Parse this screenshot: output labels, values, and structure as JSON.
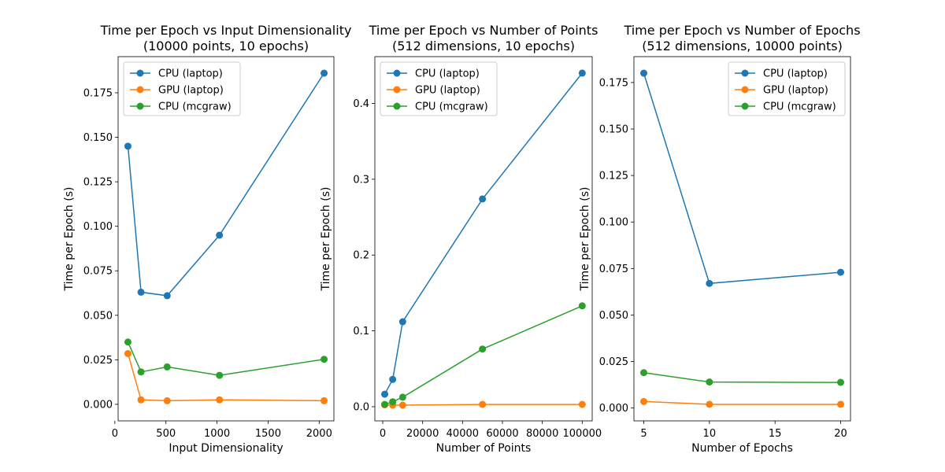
{
  "chart_data": [
    {
      "type": "line",
      "title": "Time per Epoch vs Input Dimensionality",
      "subtitle": "(10000 points, 10 epochs)",
      "xlabel": "Input Dimensionality",
      "ylabel": "Time per Epoch (s)",
      "xlim": [
        32,
        2144
      ],
      "ylim": [
        -0.0093,
        0.1953
      ],
      "xticks": [
        0,
        500,
        1000,
        1500,
        2000
      ],
      "xtick_labels": [
        "0",
        "500",
        "1000",
        "1500",
        "2000"
      ],
      "yticks": [
        0.0,
        0.025,
        0.05,
        0.075,
        0.1,
        0.125,
        0.15,
        0.175
      ],
      "ytick_labels": [
        "0.000",
        "0.025",
        "0.050",
        "0.075",
        "0.100",
        "0.125",
        "0.150",
        "0.175"
      ],
      "legend_position": "top-left",
      "x": [
        128,
        256,
        512,
        1024,
        2048
      ],
      "series": [
        {
          "name": "CPU (laptop)",
          "color": "#1f77b4",
          "values": [
            0.145,
            0.063,
            0.061,
            0.095,
            0.186
          ]
        },
        {
          "name": "GPU (laptop)",
          "color": "#ff7f0e",
          "values": [
            0.0285,
            0.0025,
            0.002,
            0.0025,
            0.002
          ]
        },
        {
          "name": "CPU (mcgraw)",
          "color": "#2ca02c",
          "values": [
            0.035,
            0.0182,
            0.021,
            0.0163,
            0.0253
          ]
        }
      ]
    },
    {
      "type": "line",
      "title": "Time per Epoch vs Number of Points",
      "subtitle": "(512 dimensions, 10 epochs)",
      "xlabel": "Number of Points",
      "ylabel": "Time per Epoch (s)",
      "xlim": [
        -3950,
        105000
      ],
      "ylim": [
        -0.0187,
        0.4617
      ],
      "xticks": [
        0,
        20000,
        40000,
        60000,
        80000,
        100000
      ],
      "xtick_labels": [
        "0",
        "20000",
        "40000",
        "60000",
        "80000",
        "100000"
      ],
      "yticks": [
        0.0,
        0.1,
        0.2,
        0.3,
        0.4
      ],
      "ytick_labels": [
        "0.0",
        "0.1",
        "0.2",
        "0.3",
        "0.4"
      ],
      "legend_position": "top-left",
      "x": [
        1000,
        5000,
        10000,
        50000,
        100000
      ],
      "series": [
        {
          "name": "CPU (laptop)",
          "color": "#1f77b4",
          "values": [
            0.0165,
            0.036,
            0.112,
            0.274,
            0.44
          ]
        },
        {
          "name": "GPU (laptop)",
          "color": "#ff7f0e",
          "values": [
            0.0025,
            0.002,
            0.002,
            0.003,
            0.003
          ]
        },
        {
          "name": "CPU (mcgraw)",
          "color": "#2ca02c",
          "values": [
            0.003,
            0.0065,
            0.0125,
            0.076,
            0.133
          ]
        }
      ]
    },
    {
      "type": "line",
      "title": "Time per Epoch vs Number of Epochs",
      "subtitle": "(512 dimensions, 10000 points)",
      "xlabel": "Number of Epochs",
      "ylabel": "Time per Epoch (s)",
      "xlim": [
        4.25,
        20.75
      ],
      "ylim": [
        -0.0069,
        0.1889
      ],
      "xticks": [
        5,
        10,
        15,
        20
      ],
      "xtick_labels": [
        "5",
        "10",
        "15",
        "20"
      ],
      "yticks": [
        0.0,
        0.025,
        0.05,
        0.075,
        0.1,
        0.125,
        0.15,
        0.175
      ],
      "ytick_labels": [
        "0.000",
        "0.025",
        "0.050",
        "0.075",
        "0.100",
        "0.125",
        "0.150",
        "0.175"
      ],
      "legend_position": "top-right",
      "x": [
        5,
        10,
        20
      ],
      "series": [
        {
          "name": "CPU (laptop)",
          "color": "#1f77b4",
          "values": [
            0.18,
            0.067,
            0.073
          ]
        },
        {
          "name": "GPU (laptop)",
          "color": "#ff7f0e",
          "values": [
            0.0035,
            0.002,
            0.002
          ]
        },
        {
          "name": "CPU (mcgraw)",
          "color": "#2ca02c",
          "values": [
            0.019,
            0.014,
            0.0138
          ]
        }
      ]
    }
  ]
}
